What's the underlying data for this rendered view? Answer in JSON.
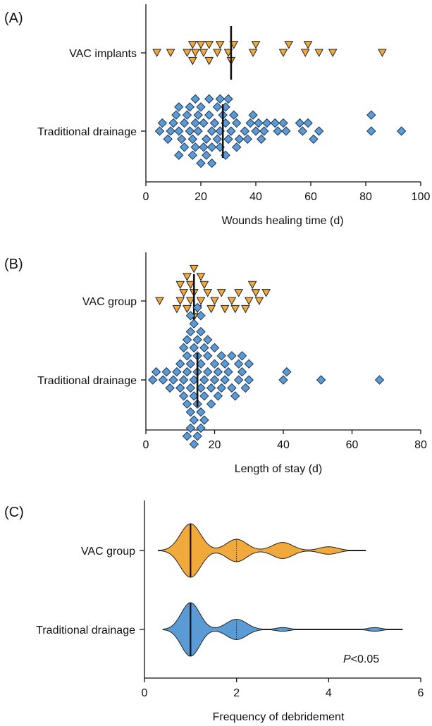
{
  "chart_data": [
    {
      "type": "scatter",
      "panel_label": "(A)",
      "xlabel": "Wounds healing time (d)",
      "xlim": [
        0,
        100
      ],
      "xticks": [
        "0",
        "20",
        "40",
        "60",
        "80",
        "100"
      ],
      "categories": [
        "VAC implants",
        "Traditional drainage"
      ],
      "series": [
        {
          "name": "VAC implants",
          "marker": "triangle-down",
          "color": "#f2a93b",
          "median": 31,
          "values": [
            4,
            9,
            15,
            17,
            18,
            21,
            23,
            26,
            27,
            30,
            32,
            39,
            40,
            50,
            58,
            59,
            63,
            68,
            86,
            17,
            20,
            23,
            31,
            52
          ]
        },
        {
          "name": "Traditional drainage",
          "marker": "diamond",
          "color": "#5b9bd5",
          "median": 28,
          "values": [
            5,
            9,
            12,
            14,
            16,
            18,
            19,
            21,
            24,
            27,
            29,
            31,
            33,
            36,
            38,
            40,
            43,
            48,
            51,
            57,
            59,
            63,
            82,
            93,
            6,
            10,
            13,
            15,
            17,
            19,
            22,
            23,
            25,
            26,
            28,
            30,
            32,
            34,
            37,
            39,
            41,
            44,
            47,
            50,
            56,
            61,
            82,
            11,
            14,
            16,
            18,
            20,
            22,
            24,
            27,
            29,
            42,
            8,
            12,
            17,
            20,
            23,
            26,
            29,
            12,
            18,
            21,
            24,
            27,
            30,
            33
          ]
        }
      ]
    },
    {
      "type": "scatter",
      "panel_label": "(B)",
      "xlabel": "Length of stay (d)",
      "xlim": [
        0,
        80
      ],
      "xticks": [
        "0",
        "20",
        "40",
        "60",
        "80"
      ],
      "categories": [
        "VAC group",
        "Traditional drainage"
      ],
      "series": [
        {
          "name": "VAC group",
          "marker": "triangle-down",
          "color": "#f2a93b",
          "median": 14,
          "values": [
            10,
            11,
            12,
            13,
            14,
            15,
            16,
            18,
            20,
            22,
            25,
            27,
            30,
            32,
            33,
            35,
            4,
            9,
            14,
            17,
            19,
            23,
            26,
            29,
            31,
            10,
            12,
            16,
            13,
            14
          ]
        },
        {
          "name": "Traditional drainage",
          "marker": "diamond",
          "color": "#5b9bd5",
          "median": 15,
          "values": [
            2,
            3,
            5,
            6,
            7,
            8,
            9,
            10,
            11,
            12,
            13,
            14,
            15,
            16,
            17,
            18,
            19,
            20,
            21,
            22,
            23,
            24,
            25,
            27,
            28,
            30,
            40,
            41,
            51,
            68,
            10,
            11,
            12,
            13,
            14,
            15,
            16,
            17,
            18,
            20,
            21,
            23,
            25,
            27,
            29,
            11,
            12,
            13,
            14,
            15,
            16,
            17,
            19,
            22,
            26,
            28,
            30,
            12,
            13,
            14,
            15,
            16,
            18,
            20,
            13,
            14,
            15,
            16,
            17,
            12,
            14,
            16,
            13,
            15
          ]
        }
      ]
    },
    {
      "type": "violin",
      "panel_label": "(C)",
      "xlabel": "Frequency of debridement",
      "xlim": [
        0,
        6
      ],
      "xticks": [
        "0",
        "2",
        "4",
        "6"
      ],
      "categories": [
        "VAC group",
        "Traditional drainage"
      ],
      "annotation": {
        "italic": "P",
        "rest": "<0.05"
      },
      "series": [
        {
          "name": "VAC group",
          "color": "#f2a93b",
          "median": 1,
          "quartile": 2,
          "range": [
            0.3,
            4.8
          ],
          "density": [
            [
              1,
              1.0
            ],
            [
              2,
              0.42
            ],
            [
              3,
              0.3
            ],
            [
              4,
              0.14
            ]
          ],
          "density_widths": [
            0.22,
            0.22,
            0.22,
            0.2
          ]
        },
        {
          "name": "Traditional drainage",
          "color": "#5b9bd5",
          "median": 1,
          "quartile": 2,
          "range": [
            0.4,
            5.6
          ],
          "density": [
            [
              1,
              1.0
            ],
            [
              2,
              0.38
            ],
            [
              3,
              0.07
            ],
            [
              5,
              0.07
            ]
          ],
          "density_widths": [
            0.2,
            0.22,
            0.14,
            0.14
          ]
        }
      ]
    }
  ]
}
